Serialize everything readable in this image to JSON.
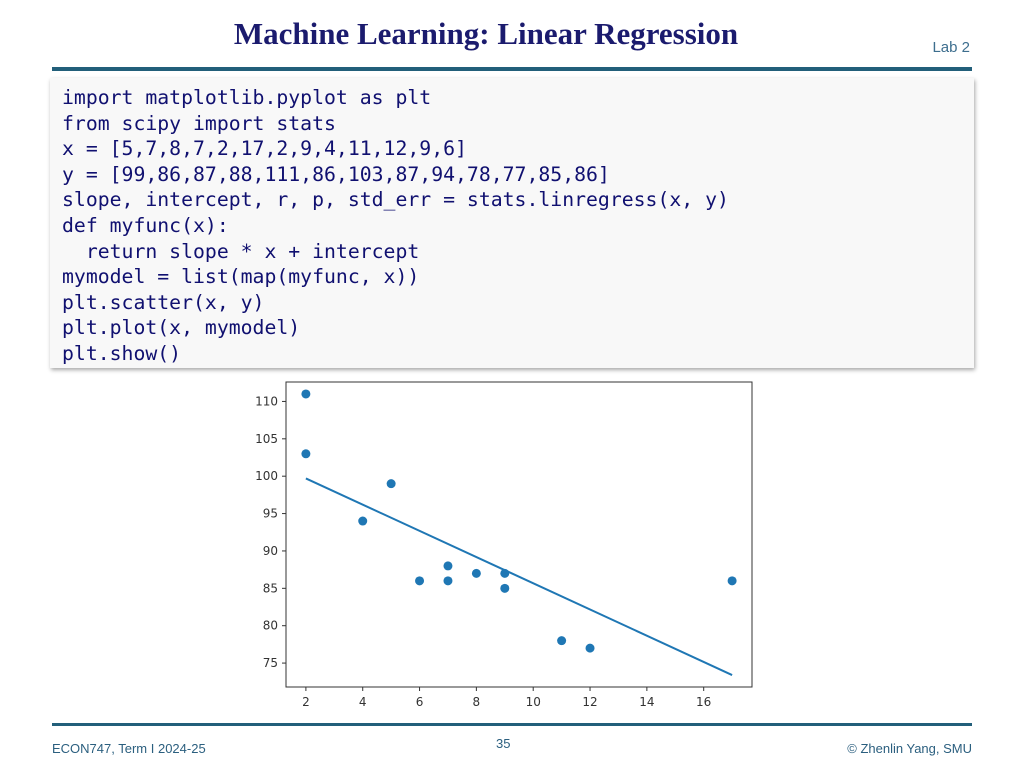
{
  "header": {
    "title": "Machine Learning: Linear Regression",
    "lab": "Lab 2"
  },
  "code": {
    "lines": [
      "import matplotlib.pyplot as plt",
      "from scipy import stats",
      "x = [5,7,8,7,2,17,2,9,4,11,12,9,6]",
      "y = [99,86,87,88,111,86,103,87,94,78,77,85,86]",
      "slope, intercept, r, p, std_err = stats.linregress(x, y)",
      "def myfunc(x):",
      "  return slope * x + intercept",
      "mymodel = list(map(myfunc, x))",
      "plt.scatter(x, y)",
      "plt.plot(x, mymodel)",
      "plt.show()"
    ]
  },
  "chart_data": {
    "type": "scatter",
    "x": [
      5,
      7,
      8,
      7,
      2,
      17,
      2,
      9,
      4,
      11,
      12,
      9,
      6
    ],
    "y": [
      99,
      86,
      87,
      88,
      111,
      86,
      103,
      87,
      94,
      78,
      77,
      85,
      86
    ],
    "regression_line": {
      "x": [
        2,
        17
      ],
      "y": [
        99.7,
        73.4
      ]
    },
    "xlim": [
      1.3,
      17.7
    ],
    "ylim": [
      71.8,
      112.6
    ],
    "xticks": [
      2,
      4,
      6,
      8,
      10,
      12,
      14,
      16
    ],
    "yticks": [
      75,
      80,
      85,
      90,
      95,
      100,
      105,
      110
    ],
    "color": "#1f77b4",
    "grid": false
  },
  "footer": {
    "course": "ECON747, Term I  2024-25",
    "page": "35",
    "copyright": "© Zhenlin Yang, SMU"
  }
}
